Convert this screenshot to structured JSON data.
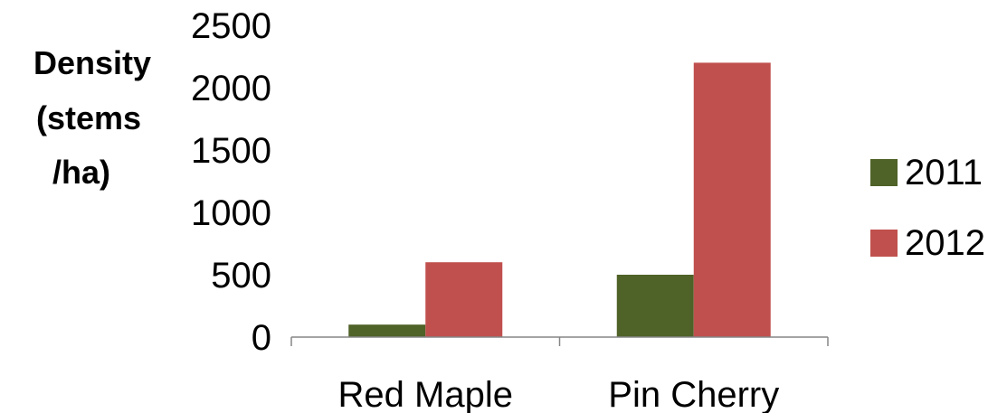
{
  "chart_data": {
    "type": "bar",
    "categories": [
      "Red Maple",
      "Pin Cherry"
    ],
    "series": [
      {
        "name": "2011",
        "values": [
          100,
          500
        ],
        "color": "#4f6228"
      },
      {
        "name": "2012",
        "values": [
          600,
          2200
        ],
        "color": "#c0504d"
      }
    ],
    "ylabel_lines": [
      "Density",
      "(stems",
      "/ha)"
    ],
    "ylim": [
      0,
      2500
    ],
    "yticks": [
      0,
      500,
      1000,
      1500,
      2000,
      2500
    ],
    "ytick_labels": [
      "0",
      "500",
      "1000",
      "1500",
      "2000",
      "2500"
    ],
    "grid": false,
    "legend": "right"
  }
}
